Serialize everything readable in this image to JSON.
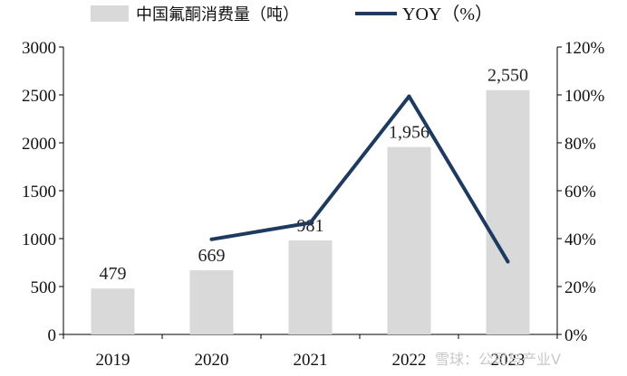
{
  "chart_data": {
    "type": "bar",
    "categories": [
      "2019",
      "2020",
      "2021",
      "2022",
      "2023"
    ],
    "series": [
      {
        "name": "中国氟酮消费量（吨）",
        "kind": "bar",
        "axis": "left",
        "values": [
          479,
          669,
          981,
          1956,
          2550
        ],
        "value_labels": [
          "479",
          "669",
          "981",
          "1,956",
          "2,550"
        ],
        "color": "#d9d9d9"
      },
      {
        "name": "YOY（%）",
        "kind": "line",
        "axis": "right",
        "values": [
          null,
          39.7,
          46.6,
          99.4,
          30.4
        ],
        "color": "#1f3a5f"
      }
    ],
    "left_axis": {
      "min": 0,
      "max": 3000,
      "ticks": [
        "0",
        "500",
        "1000",
        "1500",
        "2000",
        "2500",
        "3000"
      ]
    },
    "right_axis": {
      "min": 0,
      "max": 120,
      "ticks": [
        "0%",
        "20%",
        "40%",
        "60%",
        "80%",
        "100%",
        "120%"
      ]
    },
    "grid": false,
    "legend_position": "top"
  },
  "watermark": "雪球：公司与产业V"
}
